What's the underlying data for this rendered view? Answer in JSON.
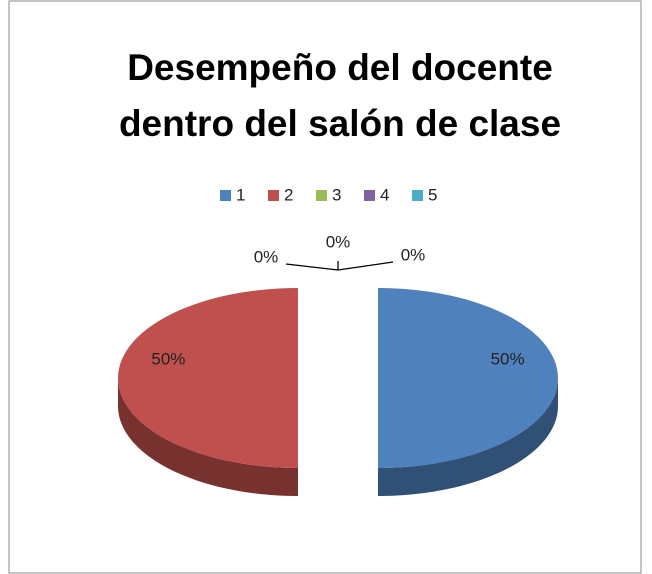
{
  "chart_data": {
    "type": "pie",
    "title": "Desempeño del docente dentro del salón de clase",
    "categories": [
      "1",
      "2",
      "3",
      "4",
      "5"
    ],
    "values": [
      50,
      50,
      0,
      0,
      0
    ],
    "value_labels": [
      "50%",
      "50%",
      "0%",
      "0%",
      "0%"
    ],
    "colors": [
      "#4f81bd",
      "#c0504d",
      "#9bbb59",
      "#8064a2",
      "#4bacc6"
    ],
    "legend": "top"
  }
}
